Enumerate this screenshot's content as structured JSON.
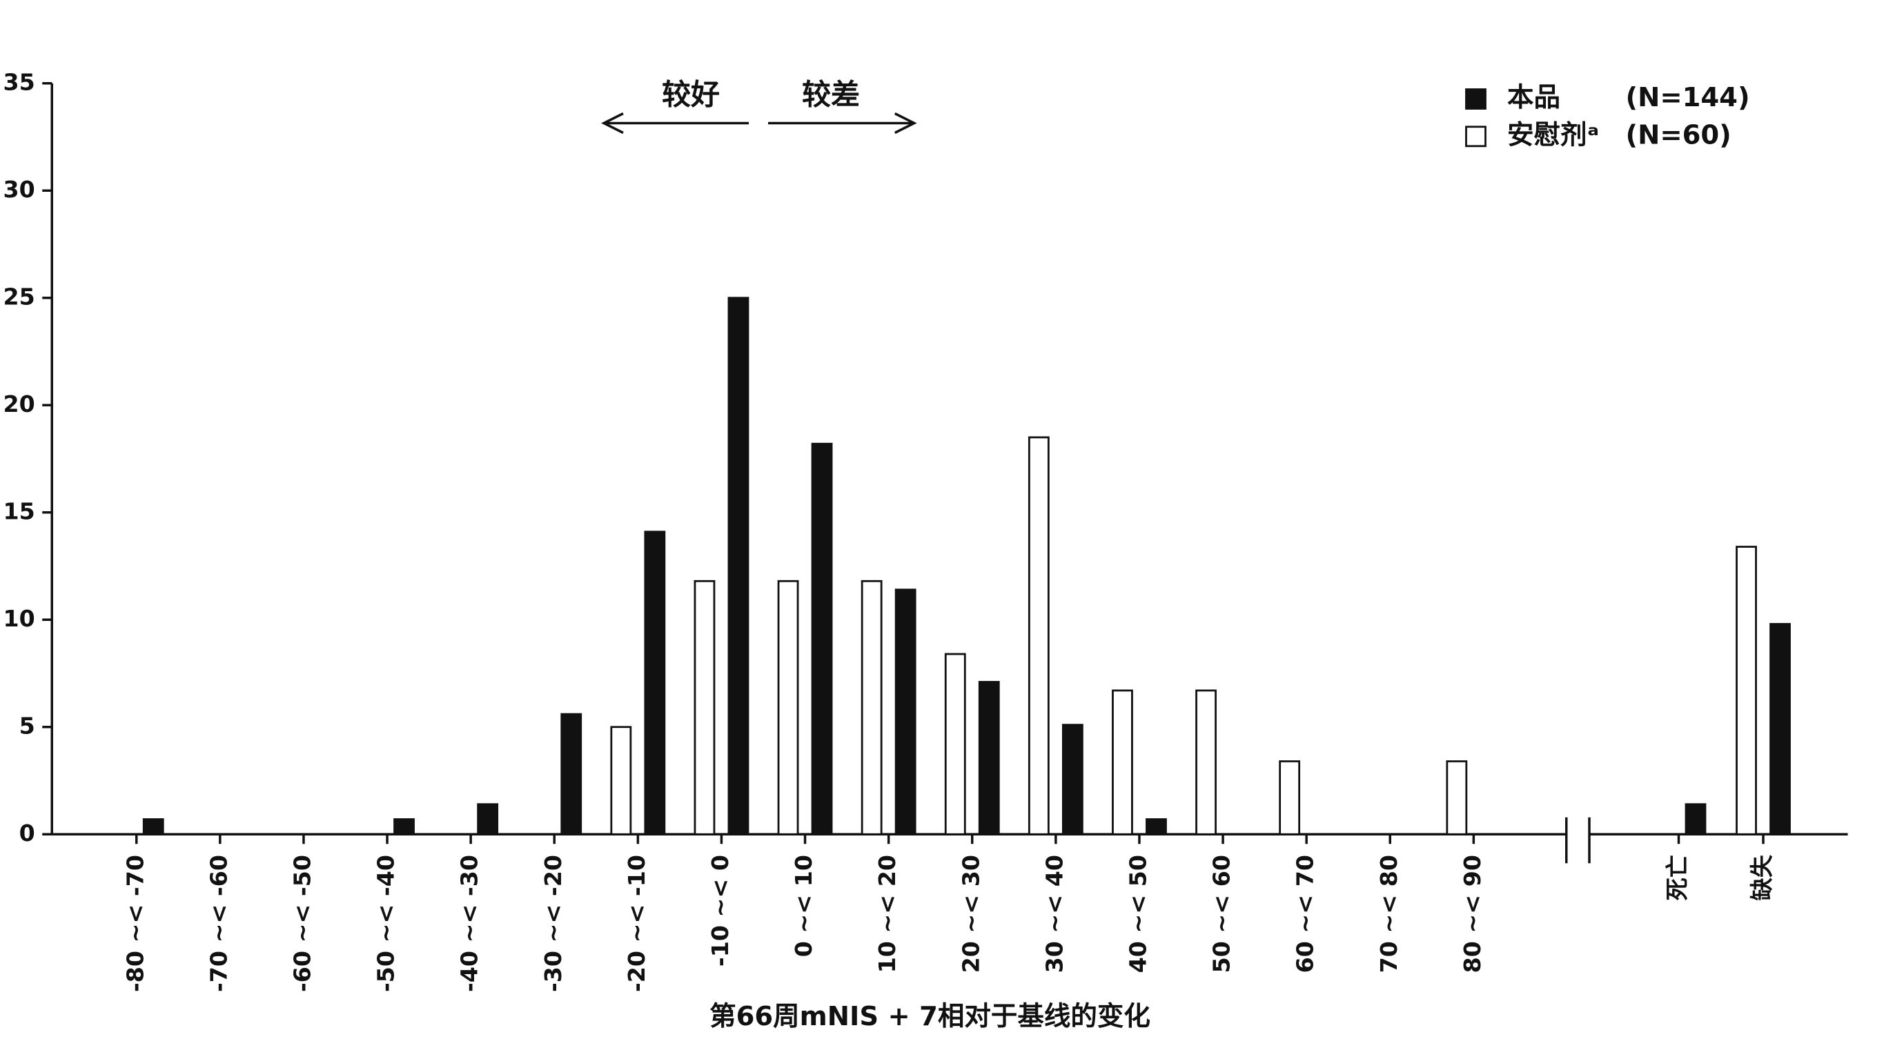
{
  "chart_data": {
    "type": "bar",
    "x_label": "第66周mNIS + 7相对于基线的变化",
    "annotations": [
      "较好",
      "较差"
    ],
    "categories": [
      "-80 ~< -70",
      "-70 ~< -60",
      "-60 ~< -50",
      "-50 ~< -40",
      "-40 ~< -30",
      "-30 ~< -20",
      "-20 ~< -10",
      "-10 ~< 0",
      "0 ~< 10",
      "10 ~< 20",
      "20 ~< 30",
      "30 ~< 40",
      "40 ~< 50",
      "50 ~< 60",
      "60 ~< 70",
      "70 ~< 80",
      "80 ~< 90",
      "死亡",
      "缺失"
    ],
    "series": [
      {
        "name": "本品",
        "n_label": "(N=144)",
        "color": "#111111",
        "values": [
          0.7,
          0,
          0,
          0.7,
          1.4,
          5.6,
          14.1,
          25.0,
          18.2,
          11.4,
          7.1,
          5.1,
          0.7,
          0,
          0,
          0,
          0,
          1.4,
          9.8
        ]
      },
      {
        "name": "安慰剂ᵃ",
        "n_label": "(N=60)",
        "color": "#ffffff",
        "values": [
          0,
          0,
          0,
          0,
          0,
          0,
          5.0,
          11.8,
          11.8,
          11.8,
          8.4,
          18.5,
          6.7,
          6.7,
          3.4,
          0,
          3.4,
          0,
          13.4
        ]
      }
    ],
    "ylim": [
      0,
      35
    ],
    "yticks": [
      0,
      5,
      10,
      15,
      20,
      25,
      30,
      35
    ]
  }
}
